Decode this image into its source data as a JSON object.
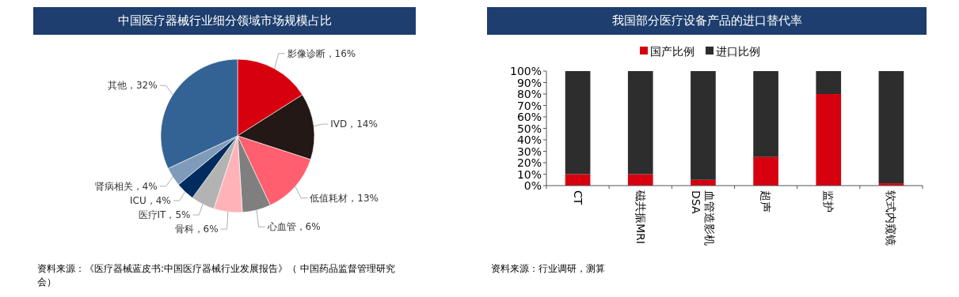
{
  "chart_data": [
    {
      "type": "pie",
      "title": "中国医疗器械行业细分领域市场规模占比",
      "categories": [
        "影像诊断",
        "IVD",
        "低值耗材",
        "心血管",
        "骨科",
        "医疗IT",
        "ICU",
        "肾病相关",
        "其他"
      ],
      "value_labels": [
        "16%",
        "14%",
        "13%",
        "6%",
        "6%",
        "5%",
        "4%",
        "4%",
        "32%"
      ],
      "values": [
        16,
        14,
        13,
        6,
        6,
        5,
        4,
        4,
        32
      ],
      "colors": [
        "#d7000f",
        "#231815",
        "#ff5f6e",
        "#7f7f7f",
        "#ffb3b8",
        "#b3b3b3",
        "#002c5f",
        "#7f9bb9",
        "#336394"
      ],
      "annotations": [
        "资料来源：《医疗器械蓝皮书:中国医疗器械行业发展报告》（ 中国药品监督管理研究会）"
      ]
    },
    {
      "type": "bar",
      "title": "我国部分医疗设备产品的进口替代率",
      "stacked": true,
      "categories": [
        "CT",
        "磁共振MRI",
        "血管造影机\nDSA",
        "超声",
        "监护",
        "软式内窥镜"
      ],
      "series": [
        {
          "name": "国产比例",
          "color": "#d7000f",
          "values": [
            10,
            10,
            5,
            25,
            80,
            2
          ]
        },
        {
          "name": "进口比例",
          "color": "#2d2d2d",
          "values": [
            90,
            90,
            95,
            75,
            20,
            98
          ]
        }
      ],
      "ylim": [
        0,
        100
      ],
      "yticks": [
        {
          "value": 0,
          "label": "0%"
        },
        {
          "value": 10,
          "label": "10%"
        },
        {
          "value": 20,
          "label": "20%"
        },
        {
          "value": 30,
          "label": "30%"
        },
        {
          "value": 40,
          "label": "40%"
        },
        {
          "value": 50,
          "label": "50%"
        },
        {
          "value": 60,
          "label": "60%"
        },
        {
          "value": 70,
          "label": "70%"
        },
        {
          "value": 80,
          "label": "80%"
        },
        {
          "value": 90,
          "label": "90%"
        },
        {
          "value": 100,
          "label": "100%"
        }
      ],
      "grid": false,
      "legend": "top",
      "annotations": [
        "资料来源：行业调研，测算"
      ]
    }
  ]
}
